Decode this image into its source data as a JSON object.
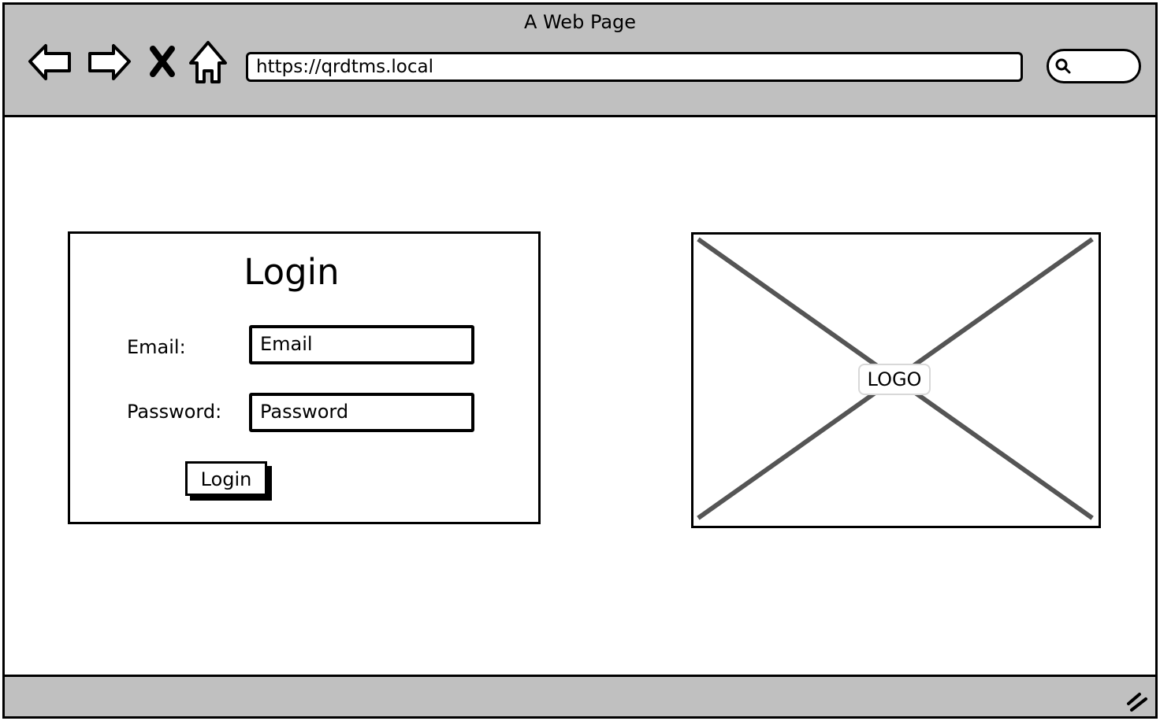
{
  "browser": {
    "window_title": "A Web Page",
    "url": "https://qrdtms.local",
    "nav_icons": [
      "back-arrow-icon",
      "forward-arrow-icon",
      "close-icon",
      "home-icon"
    ],
    "search_icon": "search-icon"
  },
  "login_form": {
    "title": "Login",
    "email_label": "Email:",
    "email_value": "Email",
    "password_label": "Password:",
    "password_value": "Password",
    "submit_label": "Login"
  },
  "logo_placeholder": {
    "label": "LOGO"
  },
  "colors": {
    "chrome_background": "#c0c0c0",
    "border": "#000000",
    "placeholder_cross": "#555555"
  }
}
